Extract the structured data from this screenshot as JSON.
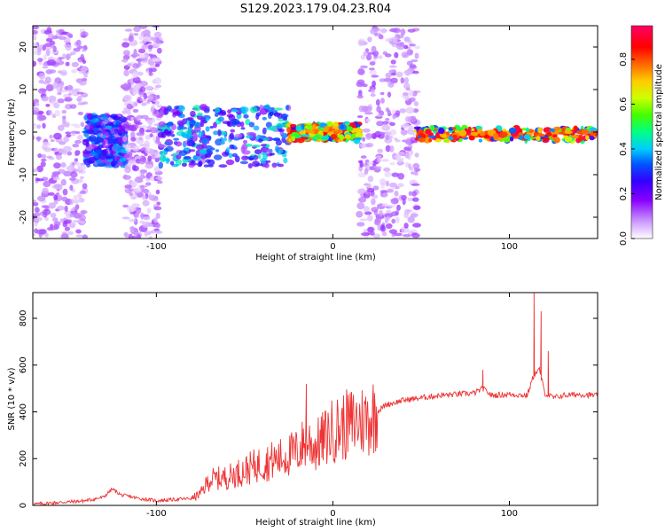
{
  "chart_data": [
    {
      "type": "heatmap",
      "title": "S129.2023.179.04.23.R04",
      "xlabel": "Height of straight line (km)",
      "ylabel": "Frequency (Hz)",
      "xlim": [
        -170,
        150
      ],
      "ylim": [
        -25,
        25
      ],
      "x_ticks": [
        -100,
        0,
        100
      ],
      "y_ticks": [
        -20,
        -10,
        0,
        10,
        20
      ],
      "colorbar": {
        "label": "Normalized spectral amplitude",
        "ticks": [
          0.0,
          0.2,
          0.4,
          0.6,
          0.8
        ],
        "range": [
          0,
          0.95
        ],
        "colormap": [
          "#ffffff",
          "#cc99ff",
          "#8800ff",
          "#3300ff",
          "#0055ff",
          "#00ccff",
          "#00ff88",
          "#44ff00",
          "#ccff00",
          "#ffcc00",
          "#ff6600",
          "#ff0000",
          "#ff0066"
        ]
      },
      "bands": [
        {
          "x0": -170,
          "x1": -140,
          "f0": -25,
          "f1": 25,
          "amp": 0.12
        },
        {
          "x0": -140,
          "x1": -117,
          "f0": -8,
          "f1": 4,
          "amp": 0.35
        },
        {
          "x0": -118,
          "x1": -98,
          "f0": -25,
          "f1": 25,
          "amp": 0.12
        },
        {
          "x0": -98,
          "x1": -25,
          "f0": -8,
          "f1": 6,
          "amp": 0.4
        },
        {
          "x0": -25,
          "x1": 15,
          "f0": -2,
          "f1": 2,
          "amp": 0.8
        },
        {
          "x0": 15,
          "x1": 48,
          "f0": -25,
          "f1": 25,
          "amp": 0.12
        },
        {
          "x0": 48,
          "x1": 150,
          "f0": -2,
          "f1": 1,
          "amp": 0.85
        }
      ]
    },
    {
      "type": "line",
      "xlabel": "Height of straight line (km)",
      "ylabel": "SNR (10 * v/v)",
      "xlim": [
        -170,
        150
      ],
      "ylim": [
        0,
        910
      ],
      "x_ticks": [
        -100,
        0,
        100
      ],
      "y_ticks": [
        0,
        200,
        400,
        600,
        800
      ],
      "color": "#ee3333",
      "x": [
        -170,
        -160,
        -150,
        -140,
        -130,
        -125,
        -120,
        -110,
        -100,
        -90,
        -80,
        -75,
        -70,
        -60,
        -50,
        -40,
        -30,
        -20,
        -15,
        -10,
        0,
        10,
        20,
        25,
        30,
        40,
        50,
        60,
        70,
        80,
        85,
        90,
        100,
        110,
        114,
        117,
        120,
        125,
        130,
        140,
        150
      ],
      "y": [
        5,
        10,
        15,
        20,
        35,
        70,
        45,
        30,
        20,
        25,
        30,
        50,
        110,
        120,
        150,
        180,
        200,
        230,
        280,
        250,
        320,
        350,
        370,
        400,
        430,
        450,
        460,
        470,
        475,
        480,
        500,
        470,
        475,
        470,
        560,
        580,
        480,
        460,
        470,
        475,
        470
      ],
      "spikes": [
        {
          "x": -15,
          "y": 520
        },
        {
          "x": 85,
          "y": 580
        },
        {
          "x": 114,
          "y": 910
        },
        {
          "x": 118,
          "y": 830
        },
        {
          "x": 122,
          "y": 660
        }
      ]
    }
  ]
}
